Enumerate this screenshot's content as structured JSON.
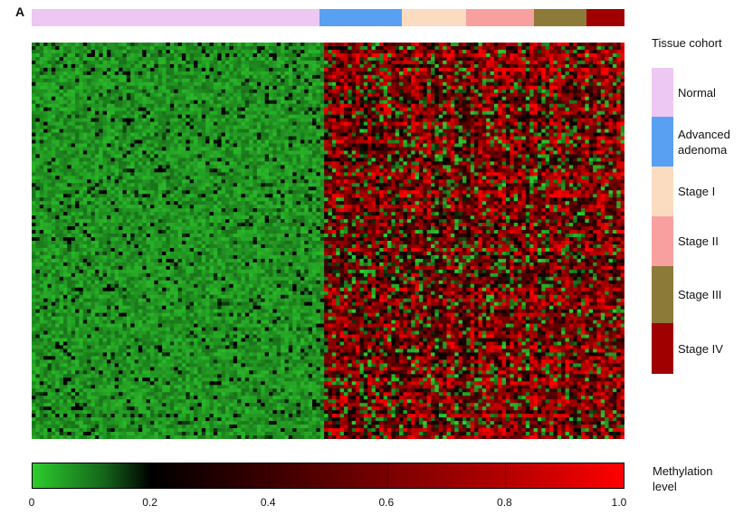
{
  "figure": {
    "panel_label": "A"
  },
  "chart_data": {
    "type": "heatmap",
    "cohort_legend_title": "Tissue cohort",
    "cohorts": [
      {
        "name": "Normal",
        "color": "#ecc8f2",
        "fraction": 0.49
      },
      {
        "name": "Advanced adenoma",
        "color": "#5aa0f2",
        "fraction": 0.14
      },
      {
        "name": "Stage I",
        "color": "#fcdcc0",
        "fraction": 0.11
      },
      {
        "name": "Stage II",
        "color": "#f8a0a0",
        "fraction": 0.115
      },
      {
        "name": "Stage III",
        "color": "#8c7a38",
        "fraction": 0.09
      },
      {
        "name": "Stage IV",
        "color": "#a00000",
        "fraction": 0.065
      }
    ],
    "colorbar": {
      "title_lines": [
        "Methylation",
        "level"
      ],
      "tick_labels": [
        "0",
        "0.2",
        "0.4",
        "0.6",
        "0.8",
        "1.0"
      ],
      "range": [
        0,
        1.0
      ],
      "low_color": "#2ecc2e",
      "mid_color": "#000000",
      "high_color": "#ff0000"
    },
    "pattern": "Normal samples predominantly low methylation (green); adenoma and cancer stages predominantly high methylation (red/black)"
  }
}
